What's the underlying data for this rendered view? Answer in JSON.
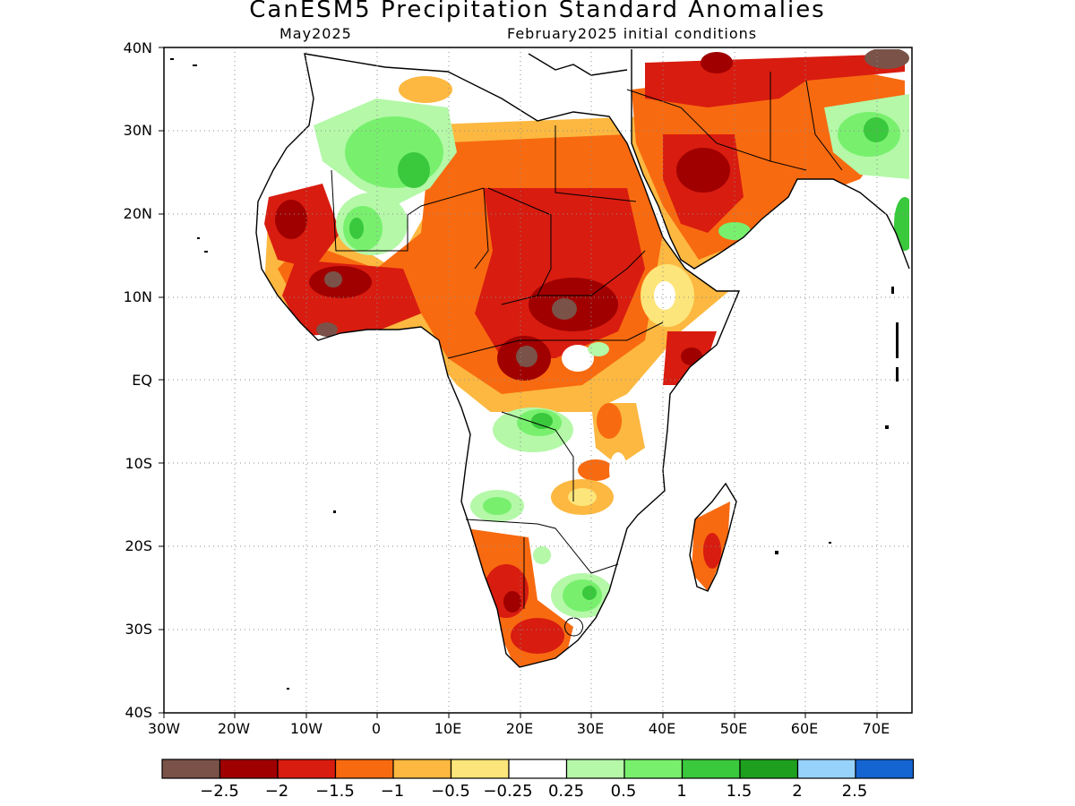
{
  "title": "CanESM5 Precipitation Standard Anomalies",
  "subtitle_left": "May2025",
  "subtitle_right": "February2025 initial conditions",
  "lat_labels": [
    "40N",
    "30N",
    "20N",
    "10N",
    "EQ",
    "10S",
    "20S",
    "30S",
    "40S"
  ],
  "lon_labels": [
    "30W",
    "20W",
    "10W",
    "0",
    "10E",
    "20E",
    "30E",
    "40E",
    "50E",
    "60E",
    "70E"
  ],
  "colorbar": {
    "colors": [
      "#7a5248",
      "#a00000",
      "#d81c10",
      "#f86a10",
      "#fcb840",
      "#fce57a",
      "#ffffff",
      "#b4f8a8",
      "#78f06e",
      "#3ac83c",
      "#1ea01e",
      "#96d2fa",
      "#1464d2"
    ],
    "labels": [
      "−2.5",
      "−2",
      "−1.5",
      "−1",
      "−0.5",
      "−0.25",
      "0.25",
      "0.5",
      "1",
      "1.5",
      "2",
      "2.5"
    ]
  },
  "colors": {
    "land_outline": "#000000",
    "grid": "#8c8c8c"
  }
}
